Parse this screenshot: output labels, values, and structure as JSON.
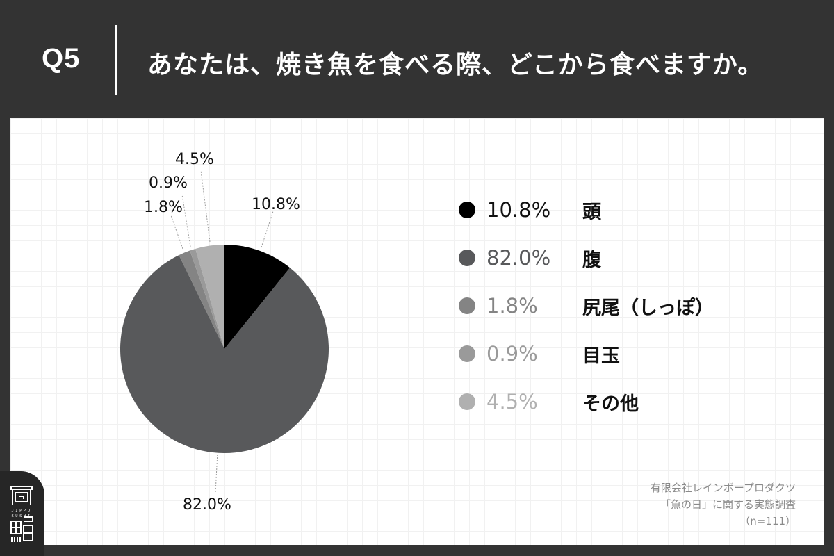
{
  "header": {
    "question_number": "Q5",
    "question_text": "あなたは、焼き魚を食べる際、どこから食べますか。"
  },
  "chart_data": {
    "type": "pie",
    "title": "あなたは、焼き魚を食べる際、どこから食べますか。",
    "categories": [
      "頭",
      "腹",
      "尻尾（しっぽ）",
      "目玉",
      "その他"
    ],
    "values": [
      10.8,
      82.0,
      1.8,
      0.9,
      4.5
    ],
    "unit": "%",
    "colors": [
      "#000000",
      "#58595b",
      "#848484",
      "#9a9a9a",
      "#b0b0b0"
    ],
    "start_angle": "12 o'clock, clockwise",
    "legend_position": "right",
    "n": 111
  },
  "pie_labels": {
    "head": "10.8%",
    "belly": "82.0%",
    "tail": "1.8%",
    "eye": "0.9%",
    "other": "4.5%"
  },
  "legend": [
    {
      "pct": "10.8%",
      "label": "頭",
      "color": "#000000",
      "text_color": "#111111"
    },
    {
      "pct": "82.0%",
      "label": "腹",
      "color": "#58595b",
      "text_color": "#58595b"
    },
    {
      "pct": "1.8%",
      "label": "尻尾（しっぽ）",
      "color": "#848484",
      "text_color": "#848484"
    },
    {
      "pct": "0.9%",
      "label": "目玉",
      "color": "#9a9a9a",
      "text_color": "#9a9a9a"
    },
    {
      "pct": "4.5%",
      "label": "その他",
      "color": "#b0b0b0",
      "text_color": "#b0b0b0"
    }
  ],
  "source": {
    "company": "有限会社レインボープロダクツ",
    "survey": "「魚の日」に関する実態調査",
    "sample": "（n=111）"
  },
  "logo": {
    "text": "JIPPO SUSHI"
  }
}
